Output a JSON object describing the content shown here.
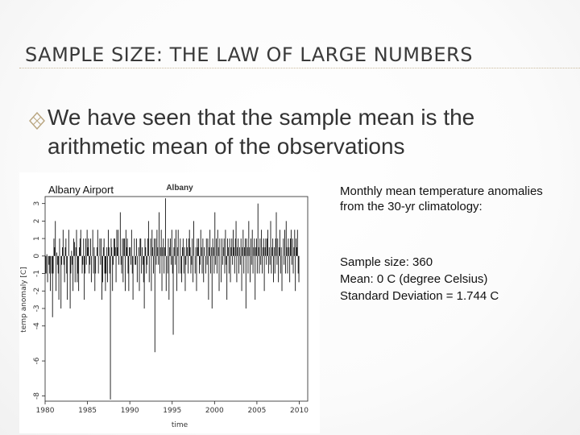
{
  "slide": {
    "title": "SAMPLE SIZE: THE LAW OF LARGE NUMBERS",
    "bullet_icon": "diamond-outline-bullet-icon",
    "bullet": "We have seen that the sample mean is the arithmetic mean of the observations",
    "overlay_label": "Albany Airport",
    "description": "Monthly mean temperature anomalies from the 30-yr climatology:",
    "stats": [
      "Sample size: 360",
      "Mean: 0 C (degree Celsius)",
      "Standard Deviation = 1.744 C"
    ]
  },
  "chart_data": {
    "type": "bar",
    "title": "Albany",
    "xlabel": "time",
    "ylabel": "temp anomaly [C]",
    "xlim": [
      1980,
      2011
    ],
    "ylim": [
      -8.3,
      3.4
    ],
    "xticks": [
      1980,
      1985,
      1990,
      1995,
      2000,
      2005,
      2010
    ],
    "yticks": [
      -8,
      -6,
      -4,
      -3,
      -2,
      -1,
      0,
      1,
      2,
      3
    ],
    "grid": false,
    "start_year": 1980,
    "values": [
      -1.0,
      -1.0,
      0.1,
      -1.5,
      0.0,
      -0.5,
      -1.0,
      -2.0,
      0.0,
      -1.0,
      -3.5,
      -1.0,
      1.0,
      0.5,
      2.0,
      -2.0,
      0.2,
      -0.5,
      -1.0,
      -2.5,
      1.0,
      0.0,
      -3.0,
      -0.5,
      0.5,
      1.5,
      -0.5,
      -1.5,
      0.5,
      1.0,
      -1.0,
      -2.5,
      0.0,
      1.5,
      0.0,
      -3.0,
      -1.0,
      0.3,
      -0.5,
      -2.0,
      1.0,
      0.8,
      -1.5,
      0.5,
      1.5,
      -1.5,
      -1.0,
      -2.0,
      0.5,
      1.0,
      1.5,
      0.0,
      -1.0,
      -0.5,
      1.0,
      -2.5,
      -1.0,
      1.0,
      -0.5,
      1.5,
      0.5,
      1.0,
      -1.0,
      -0.5,
      1.0,
      -1.5,
      0.0,
      1.5,
      -1.0,
      0.5,
      -2.0,
      -1.0,
      0.0,
      0.5,
      1.5,
      -1.0,
      0.0,
      1.0,
      -0.5,
      1.0,
      -2.5,
      -1.5,
      0.5,
      1.0,
      -1.0,
      -2.0,
      -1.0,
      0.5,
      -1.5,
      1.5,
      0.5,
      -1.0,
      -8.2,
      1.0,
      0.5,
      -2.0,
      -0.5,
      1.0,
      1.0,
      0.5,
      -1.5,
      1.5,
      0.5,
      1.5,
      -0.5,
      0.0,
      2.5,
      -0.5,
      -1.0,
      1.0,
      -1.5,
      1.0,
      1.0,
      -2.0,
      1.5,
      0.5,
      1.0,
      -1.0,
      -2.0,
      0.5,
      0.5,
      -0.5,
      1.5,
      -1.0,
      -2.5,
      0.0,
      1.0,
      -0.5,
      -0.5,
      1.0,
      -1.5,
      0.0,
      0.5,
      -2.0,
      1.0,
      1.0,
      -1.0,
      0.5,
      -0.5,
      -1.5,
      -3.0,
      1.0,
      0.5,
      -1.0,
      -0.5,
      1.0,
      2.0,
      -1.5,
      0.0,
      1.0,
      -2.0,
      1.5,
      0.5,
      -1.0,
      1.0,
      -5.5,
      1.0,
      -0.5,
      1.5,
      0.5,
      -0.5,
      2.5,
      -1.0,
      0.5,
      1.5,
      -2.0,
      0.5,
      1.0,
      -1.0,
      0.5,
      3.3,
      -2.0,
      0.0,
      -1.0,
      1.0,
      -2.5,
      0.5,
      1.0,
      -0.5,
      1.5,
      -1.0,
      -4.5,
      0.5,
      1.0,
      -0.5,
      1.5,
      -2.0,
      0.5,
      1.5,
      -1.0,
      0.0,
      1.0,
      -1.0,
      -1.5,
      0.5,
      1.0,
      -1.0,
      0.5,
      -2.0,
      -0.5,
      1.0,
      0.5,
      -1.0,
      1.0,
      1.5,
      0.5,
      -1.0,
      -0.5,
      1.0,
      -1.5,
      2.0,
      0.0,
      -1.0,
      0.5,
      -2.0,
      1.0,
      0.5,
      1.0,
      -1.0,
      -0.5,
      1.5,
      0.5,
      -1.0,
      1.0,
      -1.5,
      0.5,
      0.0,
      -1.0,
      1.0,
      -0.5,
      1.0,
      -2.5,
      0.5,
      1.5,
      -1.0,
      0.5,
      -3.0,
      1.0,
      0.5,
      -1.0,
      2.5,
      -0.5,
      1.0,
      -1.0,
      1.5,
      0.5,
      -2.0,
      1.0,
      0.0,
      -1.5,
      1.0,
      -0.5,
      0.5,
      1.0,
      -1.0,
      1.5,
      -0.5,
      -2.5,
      1.0,
      0.5,
      -1.0,
      1.0,
      -1.5,
      0.5,
      1.0,
      -0.5,
      1.5,
      0.5,
      -1.0,
      1.0,
      2.0,
      -1.5,
      0.5,
      1.0,
      -1.0,
      0.5,
      -0.5,
      1.0,
      -2.0,
      0.5,
      1.5,
      -1.0,
      0.5,
      1.0,
      -3.0,
      1.0,
      0.5,
      -1.0,
      2.0,
      0.5,
      -1.5,
      1.0,
      -0.5,
      1.5,
      -1.0,
      0.5,
      1.0,
      -2.5,
      0.5,
      1.0,
      -1.0,
      3.0,
      0.5,
      -1.0,
      1.0,
      -0.5,
      1.5,
      -1.0,
      0.5,
      1.0,
      -2.0,
      0.5,
      1.0,
      -0.5,
      1.0,
      1.5,
      -1.0,
      0.5,
      -0.5,
      2.0,
      -1.0,
      0.5,
      1.0,
      -1.5,
      0.5,
      -1.0,
      1.0,
      2.5,
      -0.5,
      1.0,
      -1.5,
      0.5,
      1.5,
      -1.0,
      0.5,
      -2.0,
      0.0,
      1.0,
      -0.5,
      1.5,
      -1.0,
      2.0,
      0.5,
      -1.0,
      1.0,
      0.5,
      -1.5,
      1.0,
      1.5,
      -0.5,
      1.0,
      -1.0,
      0.5,
      1.5,
      -2.0,
      1.0,
      0.5,
      1.5,
      -1.0,
      -1.5
    ]
  }
}
